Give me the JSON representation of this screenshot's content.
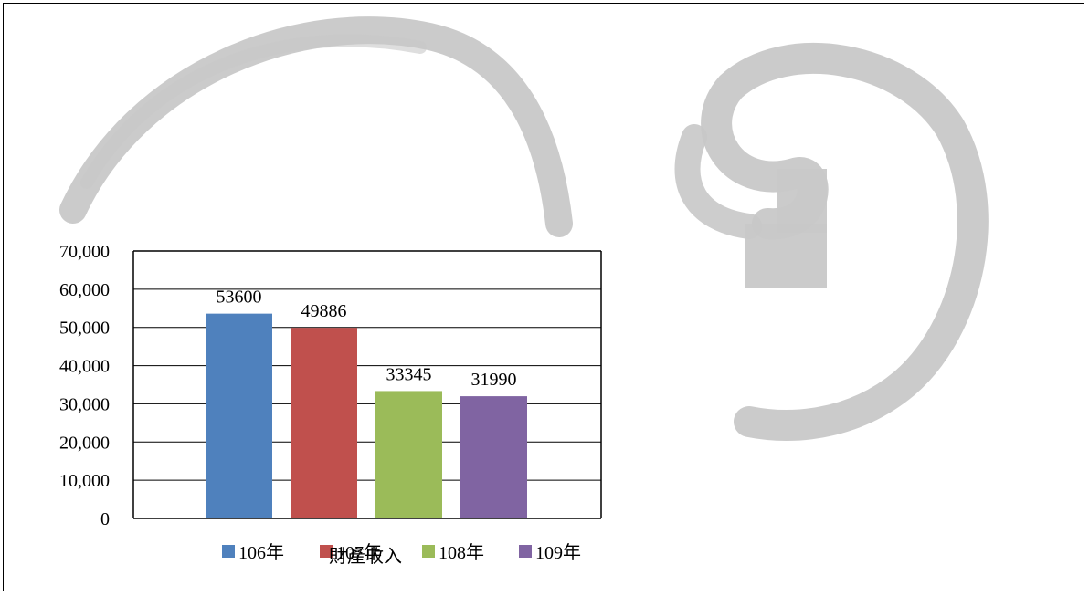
{
  "chart_data": {
    "type": "bar",
    "title": "",
    "xlabel": "財產收入",
    "ylabel": "",
    "ylim": [
      0,
      70000
    ],
    "y_ticks": [
      "0",
      "10,000",
      "20,000",
      "30,000",
      "40,000",
      "50,000",
      "60,000",
      "70,000"
    ],
    "y_tick_values": [
      0,
      10000,
      20000,
      30000,
      40000,
      50000,
      60000,
      70000
    ],
    "grid": true,
    "legend_position": "bottom",
    "series": [
      {
        "name": "106年",
        "values": [
          53600
        ],
        "color": "#4f81bd",
        "label": "53600"
      },
      {
        "name": "107年",
        "values": [
          49886
        ],
        "color": "#c0504d",
        "label": "49886"
      },
      {
        "name": "108年",
        "values": [
          33345
        ],
        "color": "#9bbb59",
        "label": "33345"
      },
      {
        "name": "109年",
        "values": [
          31990
        ],
        "color": "#8064a2",
        "label": "31990"
      }
    ]
  },
  "colors": {
    "background": "#ffffff",
    "decoration": "#c8c8c8",
    "axis": "#000000"
  }
}
